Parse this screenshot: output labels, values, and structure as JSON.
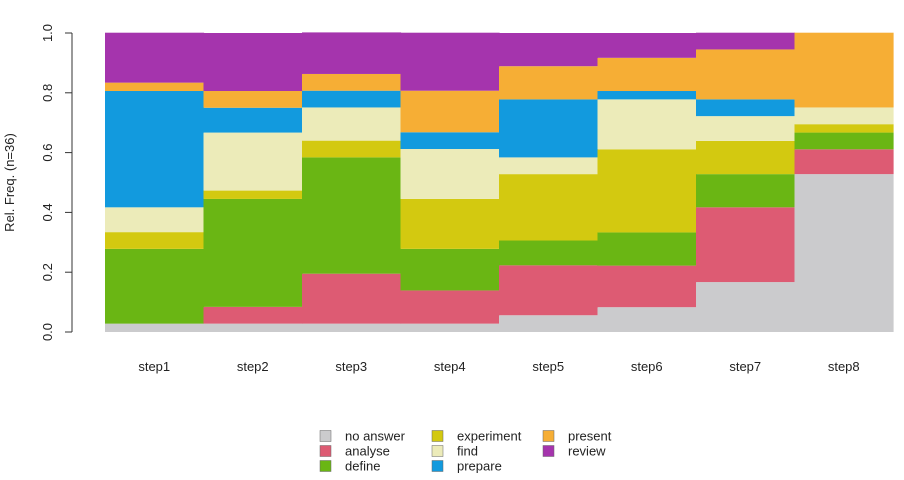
{
  "chart_data": {
    "type": "bar",
    "subtype": "stacked-relative-frequency",
    "categories": [
      "step1",
      "step2",
      "step3",
      "step4",
      "step5",
      "step6",
      "step7",
      "step8"
    ],
    "ylabel": "Rel. Freq. (n=36)",
    "ylim": [
      0,
      1
    ],
    "yticks": [
      "0.0",
      "0.2",
      "0.4",
      "0.6",
      "0.8",
      "1.0"
    ],
    "grid": false,
    "legend_position": "bottom",
    "series": [
      {
        "name": "no answer",
        "color": "#cbcbcd",
        "values": [
          0.028,
          0.028,
          0.028,
          0.028,
          0.056,
          0.083,
          0.167,
          0.528
        ]
      },
      {
        "name": "analyse",
        "color": "#dd5b73",
        "values": [
          0.0,
          0.056,
          0.167,
          0.111,
          0.167,
          0.139,
          0.25,
          0.083
        ]
      },
      {
        "name": "define",
        "color": "#6ab614",
        "values": [
          0.25,
          0.361,
          0.389,
          0.139,
          0.083,
          0.111,
          0.111,
          0.056
        ]
      },
      {
        "name": "experiment",
        "color": "#d3c910",
        "values": [
          0.056,
          0.028,
          0.056,
          0.167,
          0.222,
          0.278,
          0.111,
          0.028
        ]
      },
      {
        "name": "find",
        "color": "#ecebb9",
        "values": [
          0.083,
          0.194,
          0.111,
          0.167,
          0.056,
          0.167,
          0.083,
          0.056
        ]
      },
      {
        "name": "prepare",
        "color": "#129ade",
        "values": [
          0.389,
          0.083,
          0.056,
          0.056,
          0.194,
          0.028,
          0.056,
          0.0
        ]
      },
      {
        "name": "present",
        "color": "#f6ae35",
        "values": [
          0.028,
          0.056,
          0.056,
          0.139,
          0.111,
          0.111,
          0.167,
          0.25
        ]
      },
      {
        "name": "review",
        "color": "#a534ad",
        "values": [
          0.167,
          0.194,
          0.139,
          0.194,
          0.111,
          0.083,
          0.056,
          0.0
        ]
      }
    ]
  }
}
